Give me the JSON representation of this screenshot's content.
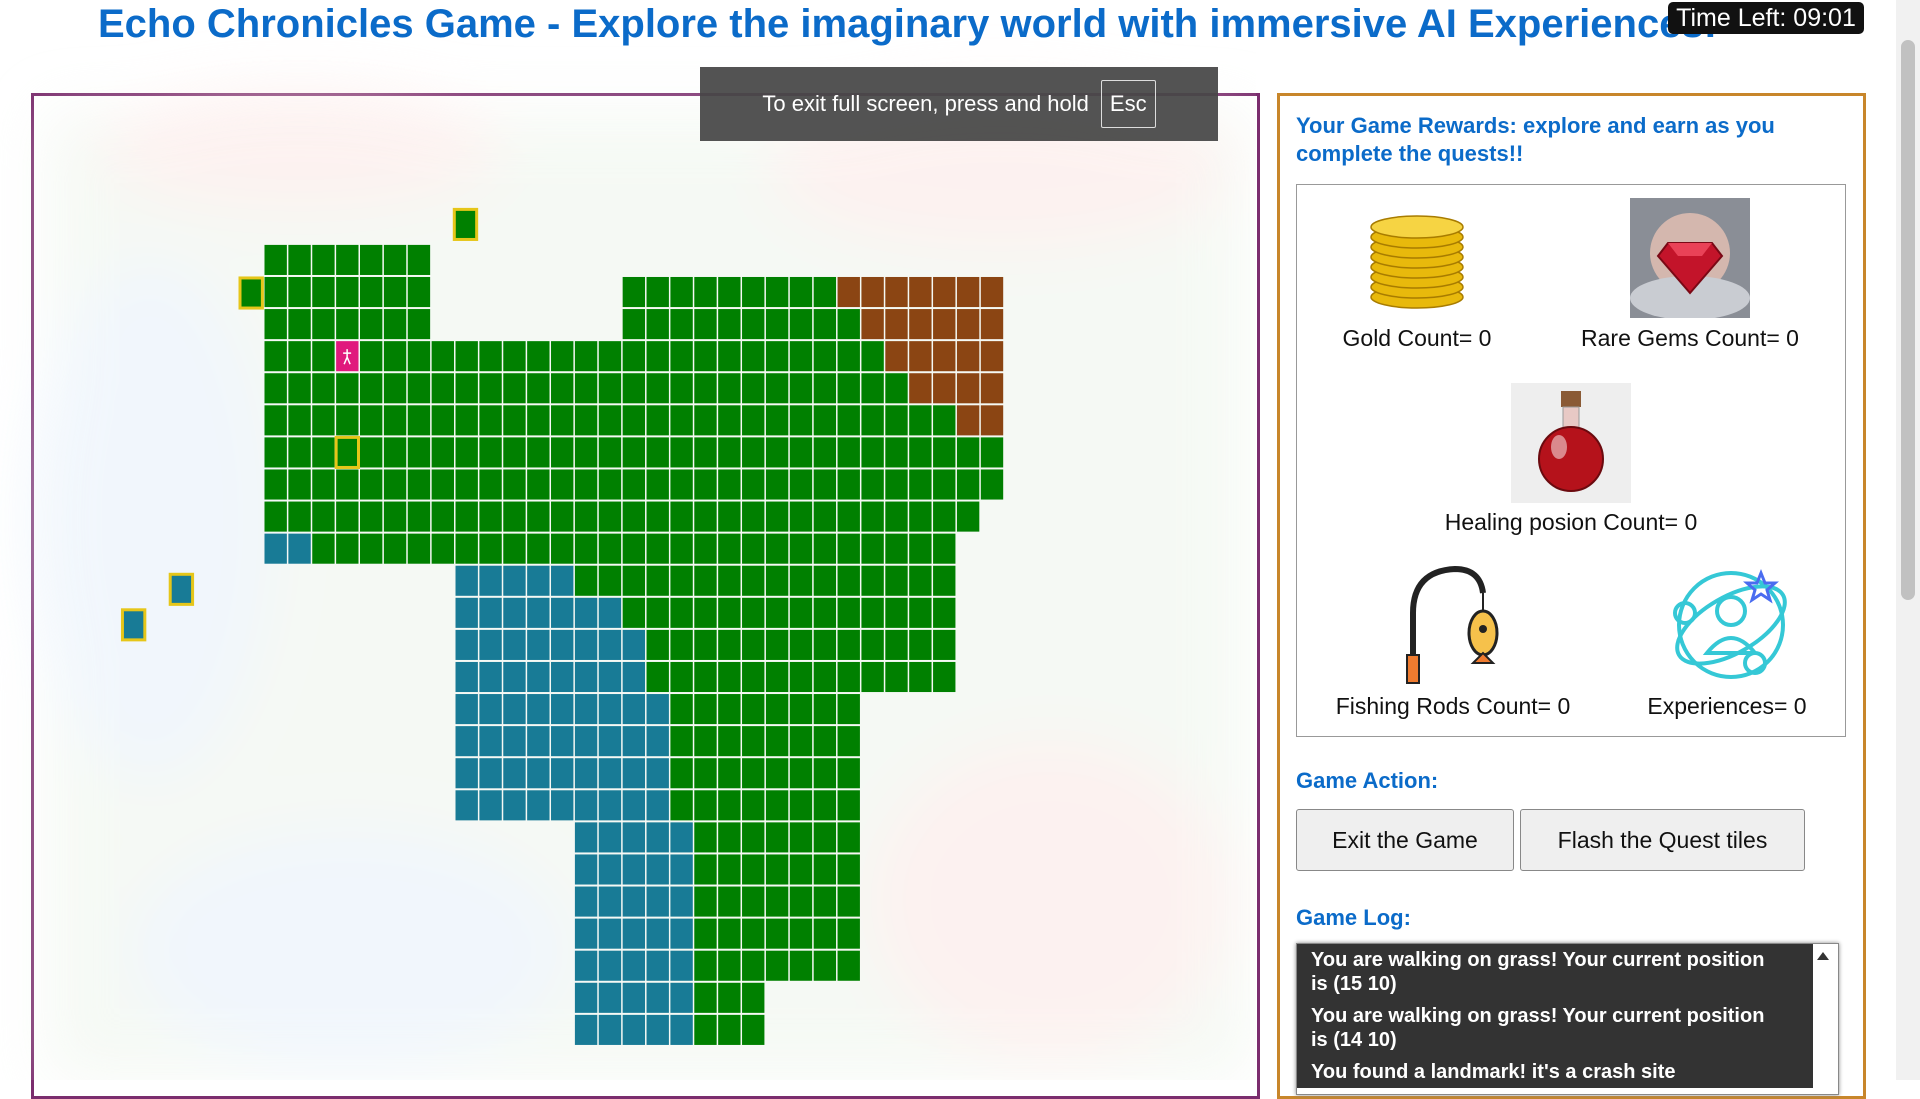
{
  "header": {
    "title": "Echo Chronicles Game - Explore the imaginary world with immersive AI Experiences!",
    "timer": "Time Left: 09:01"
  },
  "toast": {
    "text": "To exit full screen, press and hold",
    "key": "Esc"
  },
  "rewards": {
    "heading": "Your Game Rewards: explore and earn as you complete the quests!!",
    "items": [
      "Gold Count= 0",
      "Rare Gems Count= 0",
      "Healing posion Count= 0",
      "Fishing Rods Count= 0",
      "Experiences= 0"
    ]
  },
  "actions": {
    "heading": "Game Action:",
    "buttons": [
      "Exit the Game",
      "Flash the Quest tiles"
    ]
  },
  "log": {
    "heading": "Game Log:",
    "entries": [
      "You are walking on grass! Your current position is (15 10)",
      "You are walking on grass! Your current position is (14 10)",
      "You found a landmark! it's a crash site"
    ]
  }
}
